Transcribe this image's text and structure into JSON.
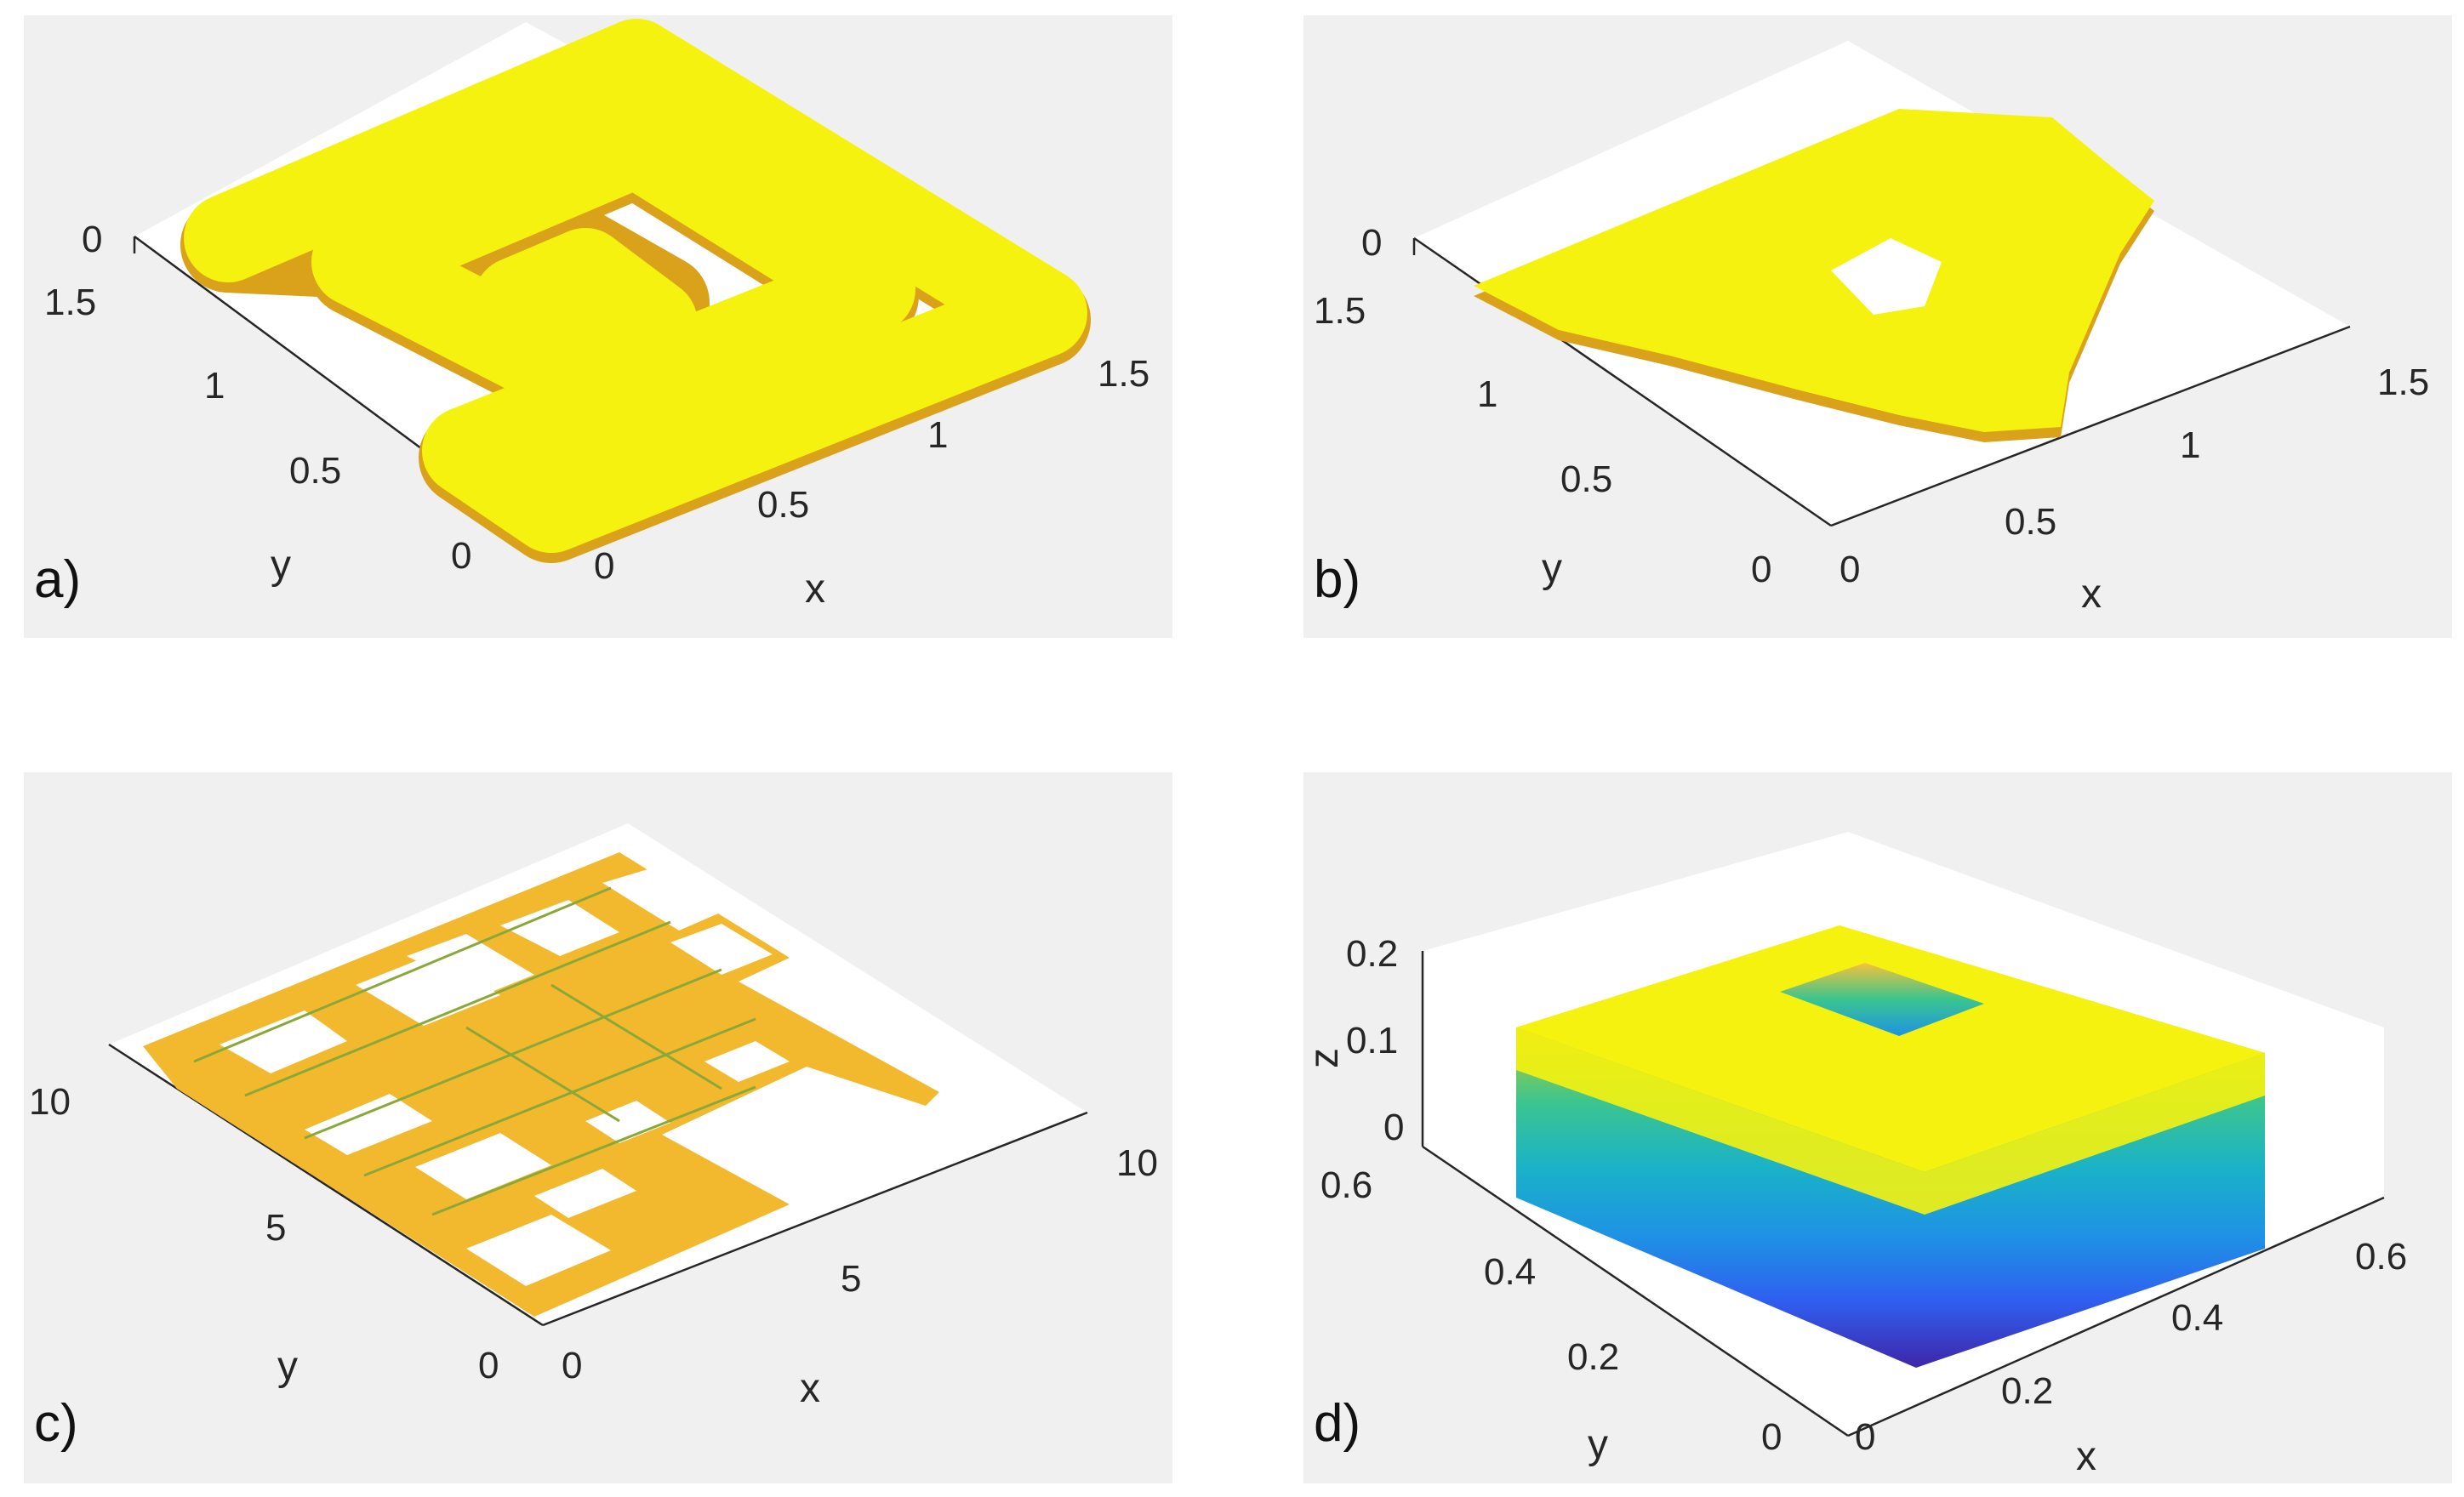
{
  "panels": [
    {
      "id": "a",
      "label": "a)",
      "x_ticks": [
        "0",
        "0.5",
        "1",
        "1.5"
      ],
      "y_ticks": [
        "0",
        "0.5",
        "1",
        "1.5"
      ],
      "z_ticks": [
        "0"
      ],
      "xlabel": "x",
      "ylabel": "y",
      "shape": "square spiral",
      "color": "#f5f20f"
    },
    {
      "id": "b",
      "label": "b)",
      "x_ticks": [
        "0",
        "0.5",
        "1",
        "1.5"
      ],
      "y_ticks": [
        "0",
        "0.5",
        "1",
        "1.5"
      ],
      "z_ticks": [
        "0"
      ],
      "xlabel": "x",
      "ylabel": "y",
      "shape": "triangle with hole",
      "color": "#f5f20f"
    },
    {
      "id": "c",
      "label": "c)",
      "x_ticks": [
        "0",
        "5",
        "10"
      ],
      "y_ticks": [
        "0",
        "5",
        "10"
      ],
      "xlabel": "x",
      "ylabel": "y",
      "shape": "circuit traces",
      "color": "#f2b82e"
    },
    {
      "id": "d",
      "label": "d)",
      "x_ticks": [
        "0",
        "0.2",
        "0.4",
        "0.6"
      ],
      "y_ticks": [
        "0",
        "0.2",
        "0.4",
        "0.6"
      ],
      "z_ticks": [
        "0",
        "0.1",
        "0.2"
      ],
      "xlabel": "x",
      "ylabel": "y",
      "zlabel": "z",
      "shape": "layered square ring",
      "colormap": [
        "#3e26a8",
        "#2f5ff0",
        "#1e93e4",
        "#1ab2c8",
        "#3bc58f",
        "#9ccb43",
        "#e6bc30",
        "#f9d82c",
        "#f5f20f"
      ]
    }
  ]
}
